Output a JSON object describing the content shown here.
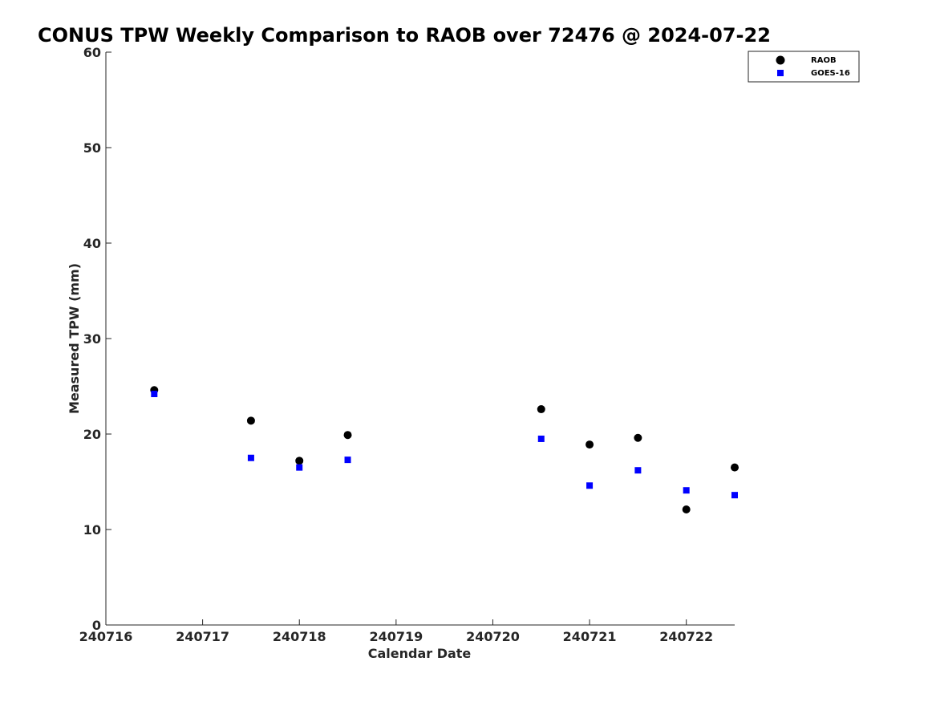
{
  "chart_data": {
    "type": "scatter",
    "title": "CONUS TPW Weekly Comparison to RAOB over 72476 @ 2024-07-22",
    "xlabel": "Calendar Date",
    "ylabel": "Measured TPW (mm)",
    "x_ticks": [
      "240716",
      "240717",
      "240718",
      "240719",
      "240720",
      "240721",
      "240722"
    ],
    "y_ticks": [
      "0",
      "10",
      "20",
      "30",
      "40",
      "50",
      "60"
    ],
    "xlim": [
      0,
      6.5
    ],
    "ylim": [
      0,
      60
    ],
    "grid": false,
    "legend_position": "top-right",
    "series": [
      {
        "name": "RAOB",
        "marker": "circle",
        "color": "#000000",
        "points": [
          {
            "x": 0.5,
            "y": 24.6
          },
          {
            "x": 1.5,
            "y": 21.4
          },
          {
            "x": 2.0,
            "y": 17.2
          },
          {
            "x": 2.5,
            "y": 19.9
          },
          {
            "x": 4.5,
            "y": 22.6
          },
          {
            "x": 5.0,
            "y": 18.9
          },
          {
            "x": 5.5,
            "y": 19.6
          },
          {
            "x": 6.0,
            "y": 12.1
          },
          {
            "x": 6.5,
            "y": 16.5
          }
        ]
      },
      {
        "name": "GOES-16",
        "marker": "square",
        "color": "#0000ff",
        "points": [
          {
            "x": 0.5,
            "y": 24.2
          },
          {
            "x": 1.5,
            "y": 17.5
          },
          {
            "x": 2.0,
            "y": 16.5
          },
          {
            "x": 2.5,
            "y": 17.3
          },
          {
            "x": 4.5,
            "y": 19.5
          },
          {
            "x": 5.0,
            "y": 14.6
          },
          {
            "x": 5.5,
            "y": 16.2
          },
          {
            "x": 6.0,
            "y": 14.1
          },
          {
            "x": 6.5,
            "y": 13.6
          }
        ]
      }
    ]
  }
}
